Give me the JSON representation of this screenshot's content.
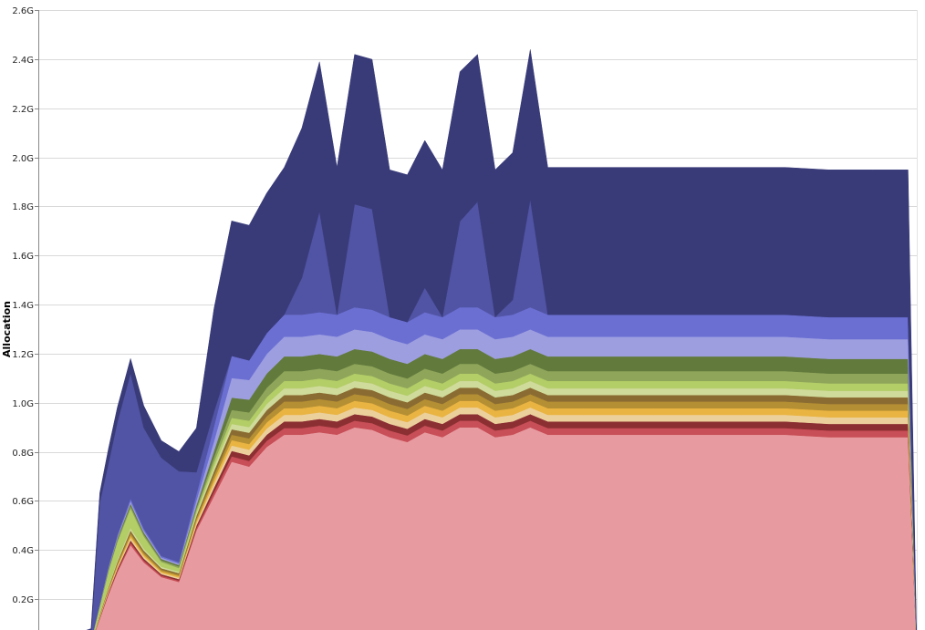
{
  "chart_data": {
    "type": "area",
    "stacked": true,
    "title": "",
    "xlabel": "",
    "ylabel": "Allocation",
    "ylim": [
      0,
      2.6
    ],
    "xlim": [
      0,
      100
    ],
    "y_ticks": [
      {
        "value": 0.2,
        "label": "0.2G"
      },
      {
        "value": 0.4,
        "label": "0.4G"
      },
      {
        "value": 0.6,
        "label": "0.6G"
      },
      {
        "value": 0.8,
        "label": "0.8G"
      },
      {
        "value": 1.0,
        "label": "1.0G"
      },
      {
        "value": 1.2,
        "label": "1.2G"
      },
      {
        "value": 1.4,
        "label": "1.4G"
      },
      {
        "value": 1.6,
        "label": "1.6G"
      },
      {
        "value": 1.8,
        "label": "1.8G"
      },
      {
        "value": 2.0,
        "label": "2.0G"
      },
      {
        "value": 2.2,
        "label": "2.2G"
      },
      {
        "value": 2.4,
        "label": "2.4G"
      },
      {
        "value": 2.6,
        "label": "2.6G"
      }
    ],
    "grid": true,
    "legend": "none",
    "x": [
      0,
      3.4,
      5,
      6,
      7,
      8,
      9,
      10.5,
      12,
      14,
      16,
      18,
      20,
      22,
      24,
      26,
      28,
      30,
      32,
      34,
      36,
      38,
      40,
      42,
      44,
      46,
      48,
      50,
      52,
      54,
      56,
      58,
      60,
      62,
      64,
      66,
      70,
      75,
      80,
      85,
      90,
      95,
      99,
      100
    ],
    "series": [
      {
        "color": "#e79ba0",
        "values": [
          0,
          0,
          0.02,
          0.02,
          0.12,
          0.22,
          0.31,
          0.42,
          0.35,
          0.29,
          0.27,
          0.48,
          0.62,
          0.76,
          0.74,
          0.82,
          0.87,
          0.87,
          0.88,
          0.87,
          0.9,
          0.89,
          0.86,
          0.84,
          0.88,
          0.86,
          0.9,
          0.9,
          0.86,
          0.87,
          0.9,
          0.87,
          0.87,
          0.87,
          0.87,
          0.87,
          0.87,
          0.87,
          0.87,
          0.87,
          0.86,
          0.86,
          0.86,
          0.0
        ]
      },
      {
        "color": "#c84e57",
        "values": [
          0,
          0,
          0,
          0,
          0.003,
          0.005,
          0.007,
          0.01,
          0.008,
          0.006,
          0.006,
          0.01,
          0.017,
          0.022,
          0.023,
          0.025,
          0.027,
          0.027,
          0.027,
          0.027,
          0.027,
          0.027,
          0.027,
          0.027,
          0.027,
          0.027,
          0.027,
          0.027,
          0.027,
          0.027,
          0.027,
          0.027,
          0.027,
          0.027,
          0.027,
          0.027,
          0.027,
          0.027,
          0.027,
          0.027,
          0.027,
          0.027,
          0.027,
          0.0
        ]
      },
      {
        "color": "#8b2f33",
        "values": [
          0,
          0,
          0,
          0,
          0.003,
          0.005,
          0.007,
          0.01,
          0.008,
          0.006,
          0.006,
          0.01,
          0.017,
          0.022,
          0.023,
          0.025,
          0.027,
          0.027,
          0.027,
          0.027,
          0.027,
          0.027,
          0.027,
          0.027,
          0.027,
          0.027,
          0.027,
          0.027,
          0.027,
          0.027,
          0.027,
          0.027,
          0.027,
          0.027,
          0.027,
          0.027,
          0.027,
          0.027,
          0.027,
          0.027,
          0.027,
          0.027,
          0.027,
          0.0
        ]
      },
      {
        "color": "#ecd09c",
        "values": [
          0,
          0,
          0,
          0,
          0.003,
          0.005,
          0.007,
          0.01,
          0.008,
          0.006,
          0.006,
          0.01,
          0.017,
          0.022,
          0.023,
          0.025,
          0.027,
          0.027,
          0.027,
          0.027,
          0.027,
          0.027,
          0.027,
          0.027,
          0.027,
          0.027,
          0.027,
          0.027,
          0.027,
          0.027,
          0.027,
          0.027,
          0.027,
          0.027,
          0.027,
          0.027,
          0.027,
          0.027,
          0.027,
          0.027,
          0.027,
          0.027,
          0.027,
          0.0
        ]
      },
      {
        "color": "#e9b442",
        "values": [
          0,
          0,
          0,
          0,
          0.003,
          0.005,
          0.007,
          0.01,
          0.008,
          0.006,
          0.006,
          0.01,
          0.017,
          0.022,
          0.023,
          0.025,
          0.027,
          0.027,
          0.027,
          0.027,
          0.027,
          0.027,
          0.027,
          0.027,
          0.027,
          0.027,
          0.027,
          0.027,
          0.027,
          0.027,
          0.027,
          0.027,
          0.027,
          0.027,
          0.027,
          0.027,
          0.027,
          0.027,
          0.027,
          0.027,
          0.027,
          0.027,
          0.027,
          0.0
        ]
      },
      {
        "color": "#b58f33",
        "values": [
          0,
          0,
          0,
          0,
          0.003,
          0.005,
          0.007,
          0.01,
          0.008,
          0.006,
          0.006,
          0.01,
          0.017,
          0.022,
          0.023,
          0.025,
          0.027,
          0.027,
          0.027,
          0.027,
          0.027,
          0.027,
          0.027,
          0.027,
          0.027,
          0.027,
          0.027,
          0.027,
          0.027,
          0.027,
          0.027,
          0.027,
          0.027,
          0.027,
          0.027,
          0.027,
          0.027,
          0.027,
          0.027,
          0.027,
          0.027,
          0.027,
          0.027,
          0.0
        ]
      },
      {
        "color": "#8a6c32",
        "values": [
          0,
          0,
          0,
          0,
          0.003,
          0.005,
          0.007,
          0.01,
          0.008,
          0.006,
          0.006,
          0.01,
          0.017,
          0.022,
          0.023,
          0.025,
          0.027,
          0.027,
          0.027,
          0.027,
          0.027,
          0.027,
          0.027,
          0.027,
          0.027,
          0.027,
          0.027,
          0.027,
          0.027,
          0.027,
          0.027,
          0.027,
          0.027,
          0.027,
          0.027,
          0.027,
          0.027,
          0.027,
          0.027,
          0.027,
          0.027,
          0.027,
          0.027,
          0.0
        ]
      },
      {
        "color": "#cfdb9b",
        "values": [
          0,
          0,
          0,
          0,
          0.003,
          0.005,
          0.007,
          0.01,
          0.008,
          0.006,
          0.006,
          0.01,
          0.017,
          0.022,
          0.023,
          0.025,
          0.027,
          0.027,
          0.027,
          0.027,
          0.027,
          0.027,
          0.027,
          0.027,
          0.027,
          0.027,
          0.027,
          0.027,
          0.027,
          0.027,
          0.027,
          0.027,
          0.027,
          0.027,
          0.027,
          0.027,
          0.027,
          0.027,
          0.027,
          0.027,
          0.027,
          0.027,
          0.027,
          0.0
        ]
      },
      {
        "color": "#b3cd67",
        "values": [
          0,
          0,
          0.005,
          0.01,
          0.03,
          0.06,
          0.075,
          0.08,
          0.05,
          0.02,
          0.015,
          0.012,
          0.02,
          0.025,
          0.026,
          0.028,
          0.03,
          0.03,
          0.03,
          0.03,
          0.03,
          0.03,
          0.03,
          0.03,
          0.03,
          0.03,
          0.03,
          0.03,
          0.03,
          0.03,
          0.03,
          0.03,
          0.03,
          0.03,
          0.03,
          0.03,
          0.03,
          0.03,
          0.03,
          0.03,
          0.03,
          0.03,
          0.03,
          0.0
        ]
      },
      {
        "color": "#8ea55a",
        "values": [
          0,
          0,
          0,
          0,
          0.003,
          0.005,
          0.007,
          0.01,
          0.008,
          0.006,
          0.006,
          0.01,
          0.02,
          0.032,
          0.034,
          0.038,
          0.04,
          0.04,
          0.04,
          0.04,
          0.04,
          0.04,
          0.04,
          0.04,
          0.04,
          0.04,
          0.04,
          0.04,
          0.04,
          0.04,
          0.04,
          0.04,
          0.04,
          0.04,
          0.04,
          0.04,
          0.04,
          0.04,
          0.04,
          0.04,
          0.04,
          0.04,
          0.04,
          0.0
        ]
      },
      {
        "color": "#627a3c",
        "values": [
          0,
          0,
          0,
          0,
          0.003,
          0.005,
          0.007,
          0.01,
          0.008,
          0.006,
          0.006,
          0.01,
          0.025,
          0.05,
          0.052,
          0.058,
          0.06,
          0.06,
          0.06,
          0.06,
          0.06,
          0.06,
          0.06,
          0.06,
          0.06,
          0.06,
          0.06,
          0.06,
          0.06,
          0.06,
          0.06,
          0.06,
          0.06,
          0.06,
          0.06,
          0.06,
          0.06,
          0.06,
          0.06,
          0.06,
          0.06,
          0.06,
          0.06,
          0.0
        ]
      },
      {
        "color": "#9d9ee0",
        "values": [
          0,
          0,
          0,
          0,
          0.003,
          0.005,
          0.007,
          0.01,
          0.008,
          0.006,
          0.006,
          0.02,
          0.04,
          0.08,
          0.08,
          0.08,
          0.08,
          0.08,
          0.08,
          0.08,
          0.08,
          0.08,
          0.08,
          0.08,
          0.08,
          0.08,
          0.08,
          0.08,
          0.08,
          0.08,
          0.08,
          0.08,
          0.08,
          0.08,
          0.08,
          0.08,
          0.08,
          0.08,
          0.08,
          0.08,
          0.08,
          0.08,
          0.08,
          0.0
        ]
      },
      {
        "color": "#6b6fd2",
        "values": [
          0,
          0,
          0,
          0,
          0.003,
          0.005,
          0.007,
          0.01,
          0.008,
          0.006,
          0.006,
          0.025,
          0.06,
          0.09,
          0.08,
          0.085,
          0.09,
          0.09,
          0.09,
          0.09,
          0.09,
          0.09,
          0.09,
          0.09,
          0.09,
          0.09,
          0.09,
          0.09,
          0.09,
          0.09,
          0.09,
          0.09,
          0.09,
          0.09,
          0.09,
          0.09,
          0.09,
          0.09,
          0.09,
          0.09,
          0.09,
          0.09,
          0.09,
          0.0
        ]
      },
      {
        "color": "#5154a4",
        "values": [
          0,
          0,
          0.003,
          0.02,
          0.41,
          0.42,
          0.46,
          0.51,
          0.41,
          0.4,
          0.37,
          0.09,
          0.06,
          0.0,
          0.0,
          0.0,
          0.0,
          0.15,
          0.41,
          0.0,
          0.42,
          0.41,
          0.0,
          0.0,
          0.1,
          0.0,
          0.35,
          0.43,
          0.0,
          0.06,
          0.44,
          0.0,
          0.0,
          0.0,
          0.0,
          0.0,
          0.0,
          0.0,
          0.0,
          0.0,
          0.0,
          0.0,
          0.0,
          0.0
        ]
      },
      {
        "color": "#393b79",
        "values": [
          0,
          0.01,
          0.04,
          0.03,
          0.04,
          0.06,
          0.06,
          0.06,
          0.09,
          0.07,
          0.08,
          0.18,
          0.42,
          0.55,
          0.55,
          0.57,
          0.6,
          0.61,
          0.61,
          0.6,
          0.61,
          0.61,
          0.6,
          0.6,
          0.6,
          0.6,
          0.61,
          0.6,
          0.6,
          0.6,
          0.61,
          0.6,
          0.6,
          0.6,
          0.6,
          0.6,
          0.6,
          0.6,
          0.6,
          0.6,
          0.6,
          0.6,
          0.6,
          0.0
        ]
      }
    ]
  }
}
